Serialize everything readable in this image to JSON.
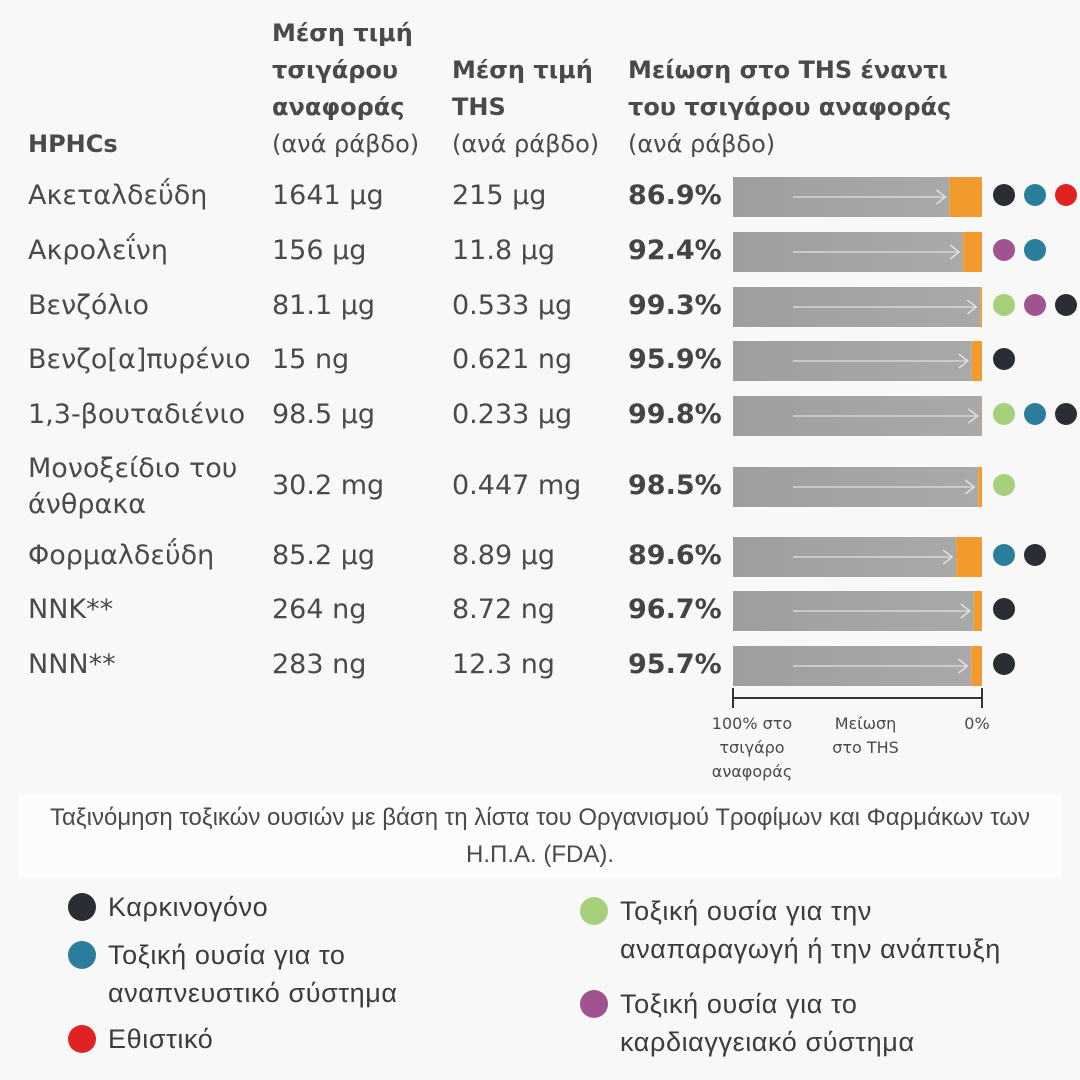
{
  "headers": {
    "col1": "HPHCs",
    "col2_bold": "Μέση τιμή τσιγάρου αναφοράς",
    "col2_sub": "(ανά ράβδο)",
    "col3_bold": "Μέση τιμή THS",
    "col3_sub": "(ανά ράβδο)",
    "col4_bold": "Μείωση στο THS έναντι του τσιγάρου αναφοράς",
    "col4_sub": "(ανά ράβδο)"
  },
  "chart_data": {
    "type": "bar",
    "categories": [
      "Ακεταλδεΰδη",
      "Ακρολεΐνη",
      "Βενζόλιο",
      "Βενζο[α]πυρένιο",
      "1,3-βουταδιένιο",
      "Μονοξείδιο του άνθρακα",
      "Φορμαλδεΰδη",
      "NNK**",
      "NNN**"
    ],
    "reference_values": [
      "1641 μg",
      "156 μg",
      "81.1 μg",
      "15 ng",
      "98.5 μg",
      "30.2 mg",
      "85.2 μg",
      "264 ng",
      "283 ng"
    ],
    "ths_values": [
      "215 μg",
      "11.8 μg",
      "0.533 μg",
      "0.621 ng",
      "0.233 μg",
      "0.447 mg",
      "8.89 μg",
      "8.72 ng",
      "12.3 ng"
    ],
    "reduction_labels": [
      "86.9%",
      "92.4%",
      "99.3%",
      "95.9%",
      "99.8%",
      "98.5%",
      "89.6%",
      "96.7%",
      "95.7%"
    ],
    "reduction_values": [
      86.9,
      92.4,
      99.3,
      95.9,
      99.8,
      98.5,
      89.6,
      96.7,
      95.7
    ],
    "toxicity": [
      [
        "carcinogen",
        "respiratory",
        "addictive"
      ],
      [
        "cardio",
        "respiratory"
      ],
      [
        "reproductive",
        "cardio",
        "carcinogen"
      ],
      [
        "carcinogen"
      ],
      [
        "reproductive",
        "respiratory",
        "carcinogen"
      ],
      [
        "reproductive"
      ],
      [
        "respiratory",
        "carcinogen"
      ],
      [
        "carcinogen"
      ],
      [
        "carcinogen"
      ]
    ],
    "axis": {
      "left_label": "100% στο τσιγάρο αναφοράς",
      "mid_label": "Μείωση στο THS",
      "right_label": "0%"
    },
    "colors": {
      "reference_bar": "#a6a6a6",
      "ths_bar": "#f29a2e"
    }
  },
  "categories_row_names": [
    "Ακεταλδεΰδη",
    "Ακρολεΐνη",
    "Βενζόλιο",
    "Βενζο[α]πυρένιο",
    "1,3-βουταδιένιο",
    "Μονοξείδιο του άνθρακα",
    "Φορμαλδεΰδη",
    "NNK**",
    "NNN**"
  ],
  "caption": "Ταξινόμηση τοξικών ουσιών με βάση τη λίστα του Οργανισμού Τροφίμων και Φαρμάκων των Η.Π.Α. (FDA).",
  "legend": {
    "carcinogen": {
      "label": "Καρκινογόνο",
      "color": "#2a2d33"
    },
    "respiratory": {
      "label": "Τοξική ουσία για το αναπνευστικό σύστημα",
      "color": "#2a7e9c"
    },
    "addictive": {
      "label": "Εθιστικό",
      "color": "#e02322"
    },
    "reproductive": {
      "label": "Τοξική ουσία για την αναπαραγωγή ή την ανάπτυξη",
      "color": "#a7cf7c"
    },
    "cardio": {
      "label": "Τοξική ουσία για το καρδιαγγειακό σύστημα",
      "color": "#a0538f"
    }
  }
}
